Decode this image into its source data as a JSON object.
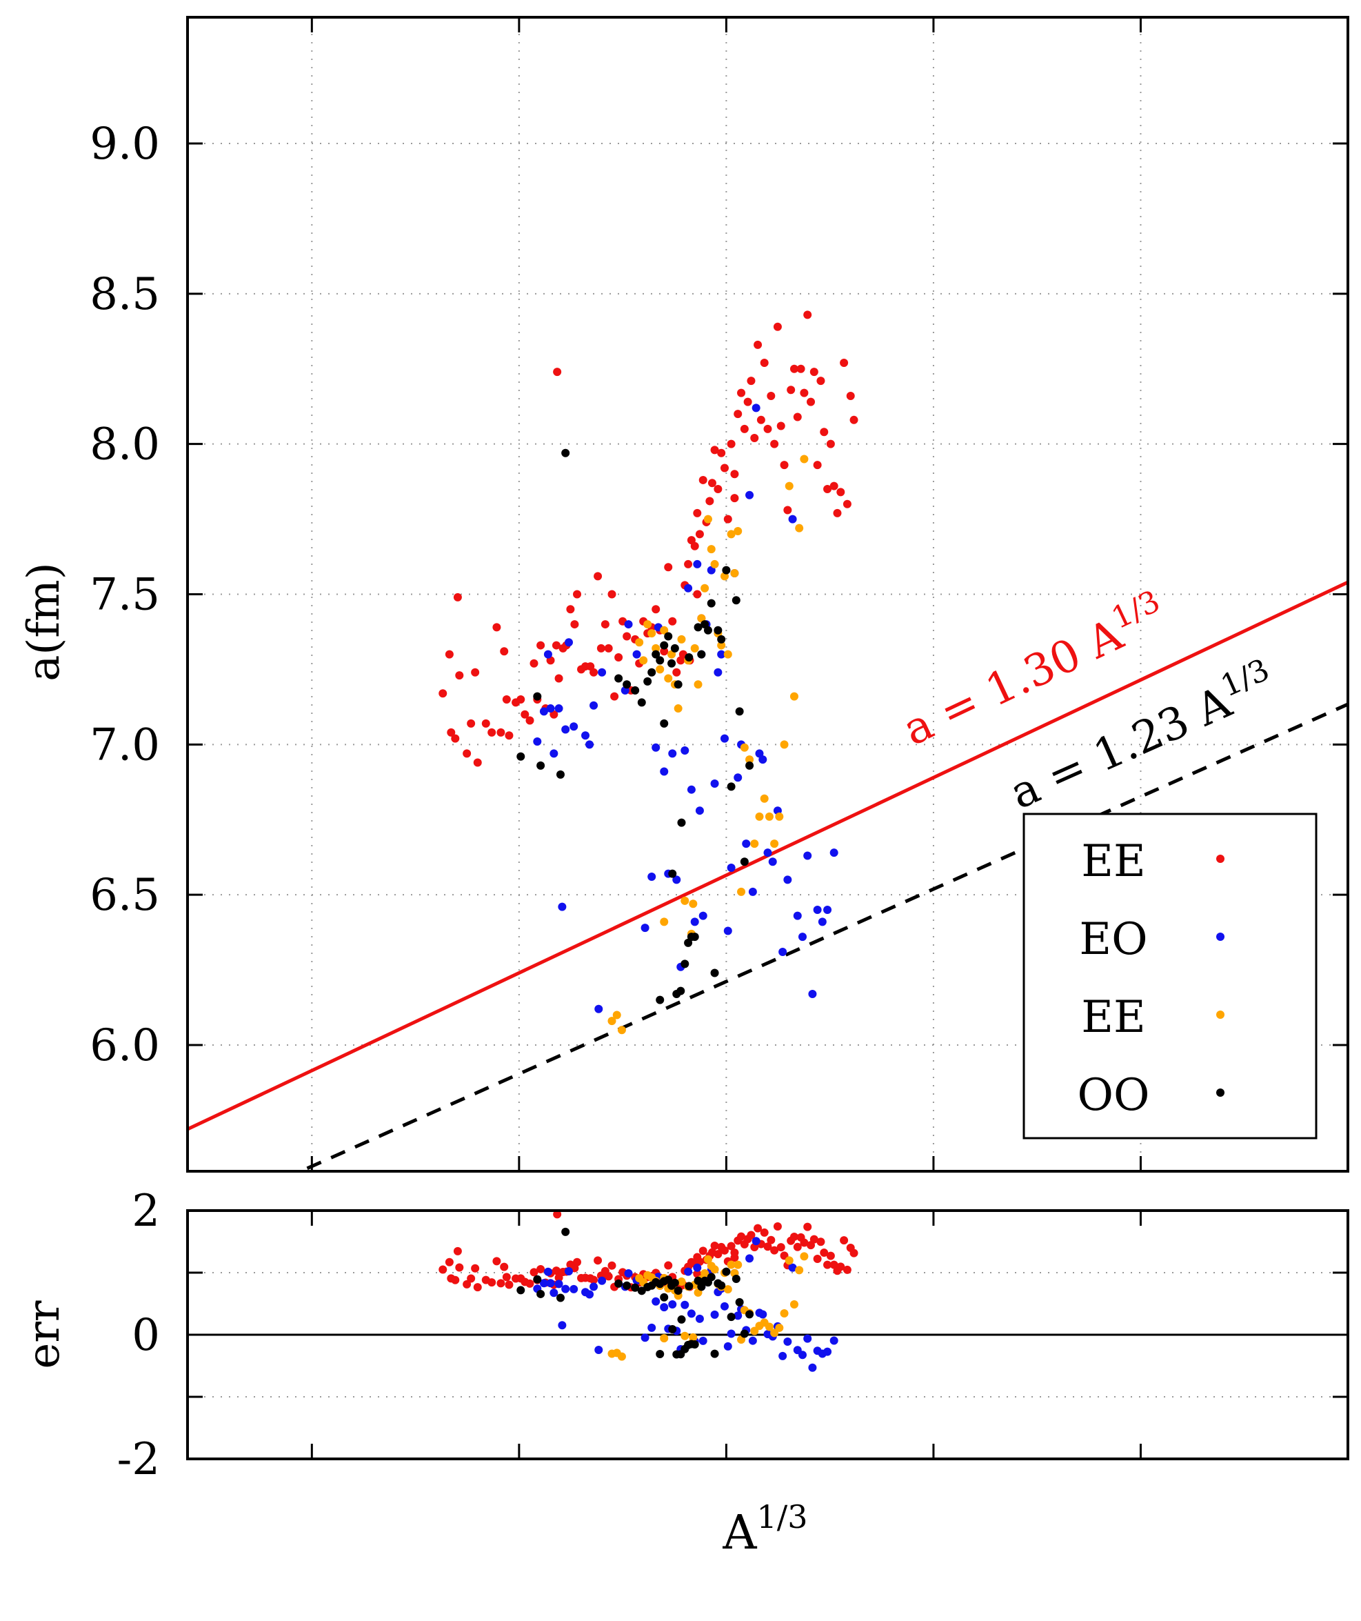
{
  "chart_data": {
    "type": "scatter",
    "panels": {
      "main": {
        "ylabel": "a(fm)",
        "xlabel_base": "A",
        "xlabel_exp": "1/3",
        "ylim": [
          5.58,
          9.42
        ],
        "xlim": [
          4.4,
          5.8
        ],
        "yticks": [
          6.0,
          6.5,
          7.0,
          7.5,
          8.0,
          8.5,
          9.0
        ],
        "ytick_labels": [
          "6.0",
          "6.5",
          "7.0",
          "7.5",
          "8.0",
          "8.5",
          "9.0"
        ],
        "xticks": [
          4.55,
          4.8,
          5.05,
          5.3,
          5.55
        ],
        "grid": true
      },
      "residual": {
        "ylabel": "err",
        "ylim": [
          -2,
          2
        ],
        "yticks": [
          -2,
          0,
          2
        ],
        "ytick_labels": [
          "-2",
          "0",
          "2"
        ],
        "grid_y": [
          -1,
          1
        ],
        "zero_line": true
      }
    },
    "fit_lines": [
      {
        "label_prefix": "a = 1.30 A",
        "label_exp": "1/3",
        "coef": 1.3,
        "color": "#ee1111",
        "style": "solid"
      },
      {
        "label_prefix": "a = 1.23 A",
        "label_exp": "1/3",
        "coef": 1.23,
        "color": "#000000",
        "style": "dashed"
      }
    ],
    "legend": {
      "placement": "bottom-right",
      "entries": [
        {
          "label": "EE",
          "color": "#ee1111"
        },
        {
          "label": "EO",
          "color": "#1111ee"
        },
        {
          "label": "EE",
          "color": "#ffa500"
        },
        {
          "label": "OO",
          "color": "#000000"
        }
      ]
    },
    "series": [
      {
        "color": "#ee1111",
        "points": [
          [
            4.708,
            7.17
          ],
          [
            4.716,
            7.3
          ],
          [
            4.718,
            7.04
          ],
          [
            4.723,
            7.02
          ],
          [
            4.726,
            7.49
          ],
          [
            4.728,
            7.23
          ],
          [
            4.737,
            6.97
          ],
          [
            4.742,
            7.07
          ],
          [
            4.747,
            7.24
          ],
          [
            4.75,
            6.94
          ],
          [
            4.76,
            7.07
          ],
          [
            4.767,
            7.04
          ],
          [
            4.773,
            7.39
          ],
          [
            4.778,
            7.04
          ],
          [
            4.782,
            7.31
          ],
          [
            4.785,
            7.15
          ],
          [
            4.788,
            7.03
          ],
          [
            4.796,
            7.14
          ],
          [
            4.802,
            7.15
          ],
          [
            4.807,
            7.1
          ],
          [
            4.813,
            7.08
          ],
          [
            4.818,
            7.27
          ],
          [
            4.822,
            7.15
          ],
          [
            4.826,
            7.33
          ],
          [
            4.832,
            7.12
          ],
          [
            4.838,
            7.28
          ],
          [
            4.842,
            7.1
          ],
          [
            4.845,
            7.33
          ],
          [
            4.846,
            8.24
          ],
          [
            4.848,
            7.22
          ],
          [
            4.853,
            7.32
          ],
          [
            4.857,
            7.33
          ],
          [
            4.862,
            7.45
          ],
          [
            4.867,
            7.4
          ],
          [
            4.87,
            7.5
          ],
          [
            4.875,
            7.25
          ],
          [
            4.88,
            7.26
          ],
          [
            4.886,
            7.26
          ],
          [
            4.89,
            7.24
          ],
          [
            4.895,
            7.56
          ],
          [
            4.899,
            7.32
          ],
          [
            4.904,
            7.4
          ],
          [
            4.908,
            7.32
          ],
          [
            4.912,
            7.5
          ],
          [
            4.915,
            7.16
          ],
          [
            4.92,
            7.29
          ],
          [
            4.925,
            7.41
          ],
          [
            4.93,
            7.36
          ],
          [
            4.935,
            7.18
          ],
          [
            4.94,
            7.35
          ],
          [
            4.945,
            7.27
          ],
          [
            4.95,
            7.41
          ],
          [
            4.955,
            7.37
          ],
          [
            4.96,
            7.39
          ],
          [
            4.965,
            7.45
          ],
          [
            4.97,
            7.38
          ],
          [
            4.975,
            7.31
          ],
          [
            4.98,
            7.59
          ],
          [
            4.985,
            7.41
          ],
          [
            4.99,
            7.24
          ],
          [
            4.995,
            7.28
          ],
          [
            5.0,
            7.53
          ],
          [
            5.004,
            7.6
          ],
          [
            5.008,
            7.68
          ],
          [
            5.012,
            7.66
          ],
          [
            5.015,
            7.77
          ],
          [
            5.018,
            7.7
          ],
          [
            5.022,
            7.88
          ],
          [
            5.026,
            7.74
          ],
          [
            5.03,
            7.81
          ],
          [
            5.033,
            7.87
          ],
          [
            5.036,
            7.98
          ],
          [
            5.04,
            7.85
          ],
          [
            5.044,
            7.97
          ],
          [
            5.048,
            7.92
          ],
          [
            5.052,
            7.75
          ],
          [
            5.056,
            8.0
          ],
          [
            5.06,
            7.82
          ],
          [
            5.064,
            8.1
          ],
          [
            5.068,
            8.17
          ],
          [
            5.072,
            8.05
          ],
          [
            5.076,
            8.14
          ],
          [
            5.08,
            8.21
          ],
          [
            5.084,
            8.02
          ],
          [
            5.088,
            8.33
          ],
          [
            5.092,
            8.08
          ],
          [
            5.096,
            8.27
          ],
          [
            5.1,
            8.05
          ],
          [
            5.104,
            8.16
          ],
          [
            5.108,
            8.0
          ],
          [
            5.112,
            8.39
          ],
          [
            5.116,
            8.06
          ],
          [
            5.12,
            7.93
          ],
          [
            5.124,
            7.78
          ],
          [
            5.128,
            8.18
          ],
          [
            5.132,
            8.25
          ],
          [
            5.136,
            8.09
          ],
          [
            5.14,
            8.25
          ],
          [
            5.144,
            8.17
          ],
          [
            5.148,
            8.43
          ],
          [
            5.152,
            8.14
          ],
          [
            5.156,
            8.24
          ],
          [
            5.16,
            7.93
          ],
          [
            5.164,
            8.21
          ],
          [
            5.168,
            8.04
          ],
          [
            5.172,
            7.85
          ],
          [
            5.176,
            8.0
          ],
          [
            5.18,
            7.86
          ],
          [
            5.184,
            7.77
          ],
          [
            5.188,
            7.84
          ],
          [
            5.192,
            8.27
          ],
          [
            5.196,
            7.8
          ],
          [
            5.2,
            8.16
          ],
          [
            5.204,
            8.08
          ],
          [
            5.015,
            7.5
          ],
          [
            5.02,
            7.42
          ],
          [
            4.998,
            7.3
          ],
          [
            5.006,
            7.28
          ],
          [
            5.06,
            7.9
          ]
        ]
      },
      {
        "color": "#1111ee",
        "points": [
          [
            4.822,
            7.01
          ],
          [
            4.83,
            7.11
          ],
          [
            4.835,
            7.3
          ],
          [
            4.838,
            7.12
          ],
          [
            4.842,
            6.97
          ],
          [
            4.848,
            7.12
          ],
          [
            4.852,
            6.46
          ],
          [
            4.856,
            7.05
          ],
          [
            4.86,
            7.34
          ],
          [
            4.866,
            7.06
          ],
          [
            4.88,
            7.03
          ],
          [
            4.885,
            7.0
          ],
          [
            4.89,
            7.13
          ],
          [
            4.896,
            6.12
          ],
          [
            4.9,
            7.24
          ],
          [
            4.928,
            7.18
          ],
          [
            4.932,
            7.4
          ],
          [
            4.942,
            7.3
          ],
          [
            4.952,
            6.39
          ],
          [
            4.96,
            6.56
          ],
          [
            4.968,
            7.39
          ],
          [
            4.975,
            6.91
          ],
          [
            4.98,
            6.57
          ],
          [
            4.985,
            6.97
          ],
          [
            4.99,
            6.55
          ],
          [
            4.995,
            6.26
          ],
          [
            5.0,
            6.98
          ],
          [
            5.004,
            7.52
          ],
          [
            5.008,
            6.85
          ],
          [
            5.012,
            6.41
          ],
          [
            5.015,
            7.6
          ],
          [
            5.018,
            6.78
          ],
          [
            5.02,
            7.3
          ],
          [
            5.026,
            7.4
          ],
          [
            5.032,
            7.58
          ],
          [
            5.036,
            6.87
          ],
          [
            5.04,
            7.24
          ],
          [
            5.044,
            7.3
          ],
          [
            5.048,
            7.02
          ],
          [
            5.052,
            6.38
          ],
          [
            5.056,
            6.59
          ],
          [
            5.06,
            7.57
          ],
          [
            5.064,
            6.89
          ],
          [
            5.068,
            7.0
          ],
          [
            5.074,
            6.67
          ],
          [
            5.078,
            7.83
          ],
          [
            5.082,
            6.51
          ],
          [
            5.086,
            8.12
          ],
          [
            5.09,
            6.97
          ],
          [
            5.094,
            6.95
          ],
          [
            5.1,
            6.64
          ],
          [
            5.106,
            6.61
          ],
          [
            5.112,
            6.78
          ],
          [
            5.118,
            6.31
          ],
          [
            5.124,
            6.55
          ],
          [
            5.13,
            7.75
          ],
          [
            5.136,
            6.43
          ],
          [
            5.142,
            6.36
          ],
          [
            5.148,
            6.63
          ],
          [
            5.154,
            6.17
          ],
          [
            5.16,
            6.45
          ],
          [
            5.166,
            6.41
          ],
          [
            5.172,
            6.45
          ],
          [
            5.18,
            6.64
          ],
          [
            4.965,
            6.99
          ],
          [
            5.022,
            6.43
          ]
        ]
      },
      {
        "color": "#ffa500",
        "points": [
          [
            4.912,
            6.08
          ],
          [
            4.918,
            6.1
          ],
          [
            4.924,
            6.05
          ],
          [
            4.945,
            7.34
          ],
          [
            4.95,
            7.28
          ],
          [
            4.955,
            7.4
          ],
          [
            4.96,
            7.37
          ],
          [
            4.965,
            7.32
          ],
          [
            4.97,
            7.25
          ],
          [
            4.975,
            7.38
          ],
          [
            4.98,
            7.22
          ],
          [
            4.984,
            7.3
          ],
          [
            4.988,
            7.2
          ],
          [
            4.992,
            7.12
          ],
          [
            4.996,
            7.35
          ],
          [
            5.0,
            6.48
          ],
          [
            5.004,
            7.28
          ],
          [
            5.008,
            6.37
          ],
          [
            5.012,
            7.32
          ],
          [
            5.016,
            7.2
          ],
          [
            5.02,
            7.42
          ],
          [
            5.024,
            7.52
          ],
          [
            5.028,
            7.75
          ],
          [
            5.032,
            7.65
          ],
          [
            5.036,
            7.6
          ],
          [
            5.04,
            7.37
          ],
          [
            5.044,
            7.33
          ],
          [
            5.048,
            7.56
          ],
          [
            5.052,
            7.3
          ],
          [
            5.056,
            7.7
          ],
          [
            5.06,
            7.57
          ],
          [
            5.064,
            7.71
          ],
          [
            5.068,
            6.51
          ],
          [
            5.072,
            6.99
          ],
          [
            5.078,
            6.95
          ],
          [
            5.084,
            6.67
          ],
          [
            5.09,
            6.76
          ],
          [
            5.096,
            6.82
          ],
          [
            5.102,
            6.76
          ],
          [
            5.108,
            6.67
          ],
          [
            5.114,
            6.76
          ],
          [
            5.12,
            7.0
          ],
          [
            5.126,
            7.86
          ],
          [
            5.132,
            7.16
          ],
          [
            5.138,
            7.72
          ],
          [
            5.144,
            7.95
          ],
          [
            4.975,
            6.41
          ],
          [
            5.01,
            6.47
          ]
        ]
      },
      {
        "color": "#000000",
        "points": [
          [
            4.802,
            6.96
          ],
          [
            4.822,
            7.16
          ],
          [
            4.826,
            6.93
          ],
          [
            4.85,
            6.9
          ],
          [
            4.856,
            7.97
          ],
          [
            4.92,
            7.22
          ],
          [
            4.93,
            7.2
          ],
          [
            4.94,
            7.18
          ],
          [
            4.948,
            7.14
          ],
          [
            4.955,
            7.21
          ],
          [
            4.96,
            7.24
          ],
          [
            4.965,
            7.3
          ],
          [
            4.97,
            7.28
          ],
          [
            4.975,
            7.33
          ],
          [
            4.98,
            7.36
          ],
          [
            4.984,
            7.27
          ],
          [
            4.988,
            7.32
          ],
          [
            4.992,
            7.2
          ],
          [
            4.996,
            6.74
          ],
          [
            5.0,
            6.27
          ],
          [
            5.004,
            6.34
          ],
          [
            5.008,
            6.36
          ],
          [
            5.012,
            6.36
          ],
          [
            5.016,
            7.39
          ],
          [
            5.02,
            7.3
          ],
          [
            5.024,
            7.4
          ],
          [
            5.028,
            7.38
          ],
          [
            5.032,
            7.47
          ],
          [
            5.036,
            6.24
          ],
          [
            5.04,
            7.38
          ],
          [
            5.044,
            7.35
          ],
          [
            5.05,
            7.58
          ],
          [
            5.056,
            6.86
          ],
          [
            5.062,
            7.48
          ],
          [
            5.066,
            7.11
          ],
          [
            5.072,
            6.61
          ],
          [
            5.078,
            6.93
          ],
          [
            4.99,
            6.17
          ],
          [
            4.985,
            6.57
          ],
          [
            4.97,
            6.15
          ],
          [
            4.975,
            7.07
          ],
          [
            5.005,
            7.29
          ],
          [
            4.995,
            6.18
          ]
        ]
      }
    ]
  }
}
